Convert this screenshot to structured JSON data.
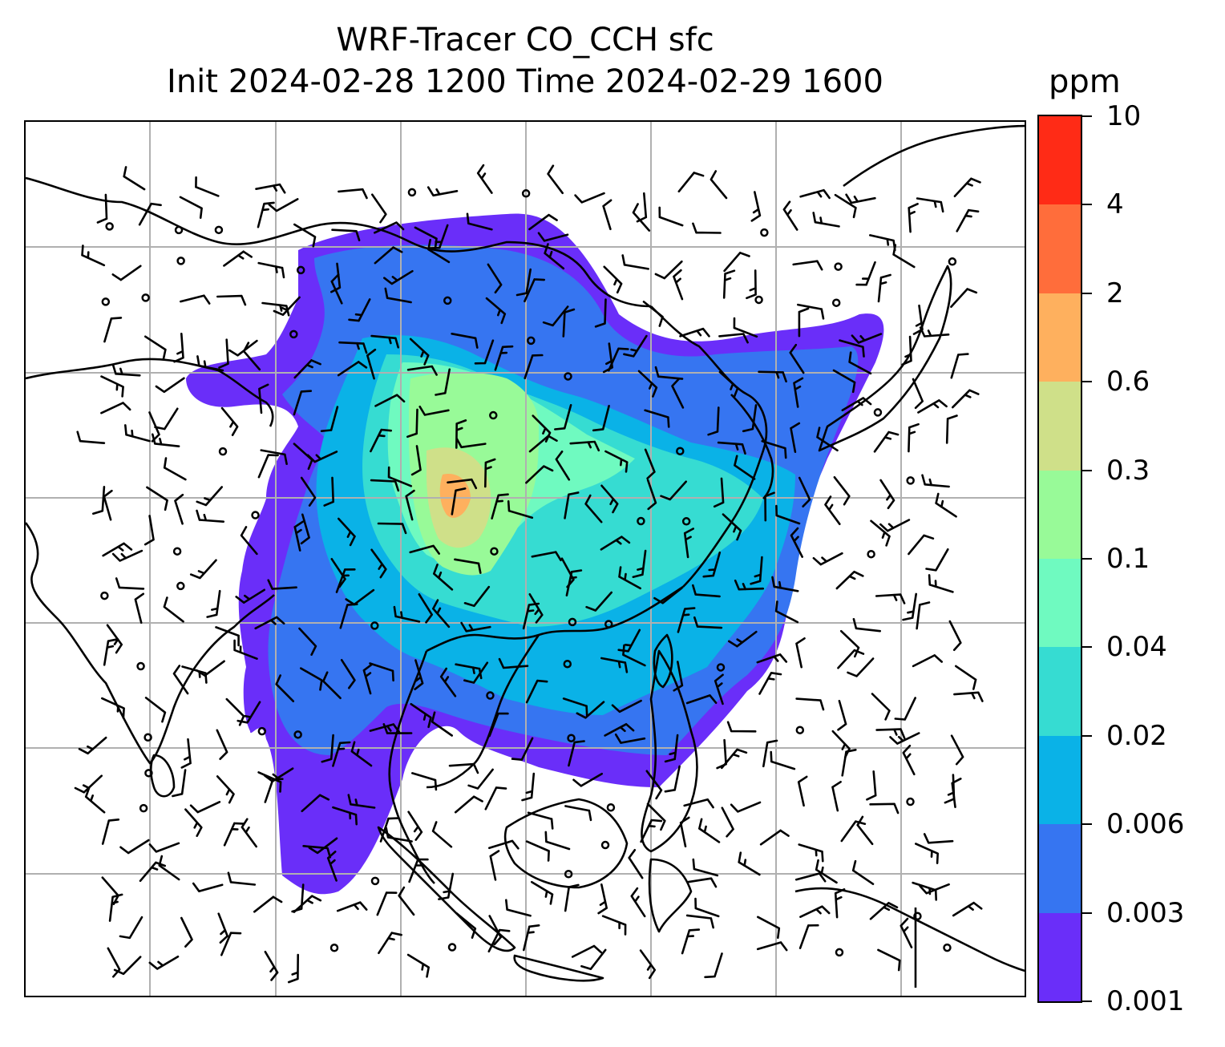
{
  "title": {
    "line1": "WRF-Tracer CO_CCH sfc",
    "line2": "Init 2024-02-28 1200 Time 2024-02-29 1600"
  },
  "colorbar": {
    "unit": "ppm",
    "levels": [
      "0.001",
      "0.003",
      "0.006",
      "0.02",
      "0.04",
      "0.1",
      "0.3",
      "0.6",
      "2",
      "4",
      "10"
    ],
    "colors": [
      "#6a2ef9",
      "#3675f1",
      "#0ab2e7",
      "#36dcd2",
      "#6ffac0",
      "#98fa98",
      "#cfe089",
      "#feb05e",
      "#ff6d3b",
      "#ff2b16"
    ]
  },
  "map": {
    "coastline_color": "#000000",
    "gridline_color": "#b0b0b0",
    "wind_barb_color": "#000000"
  }
}
